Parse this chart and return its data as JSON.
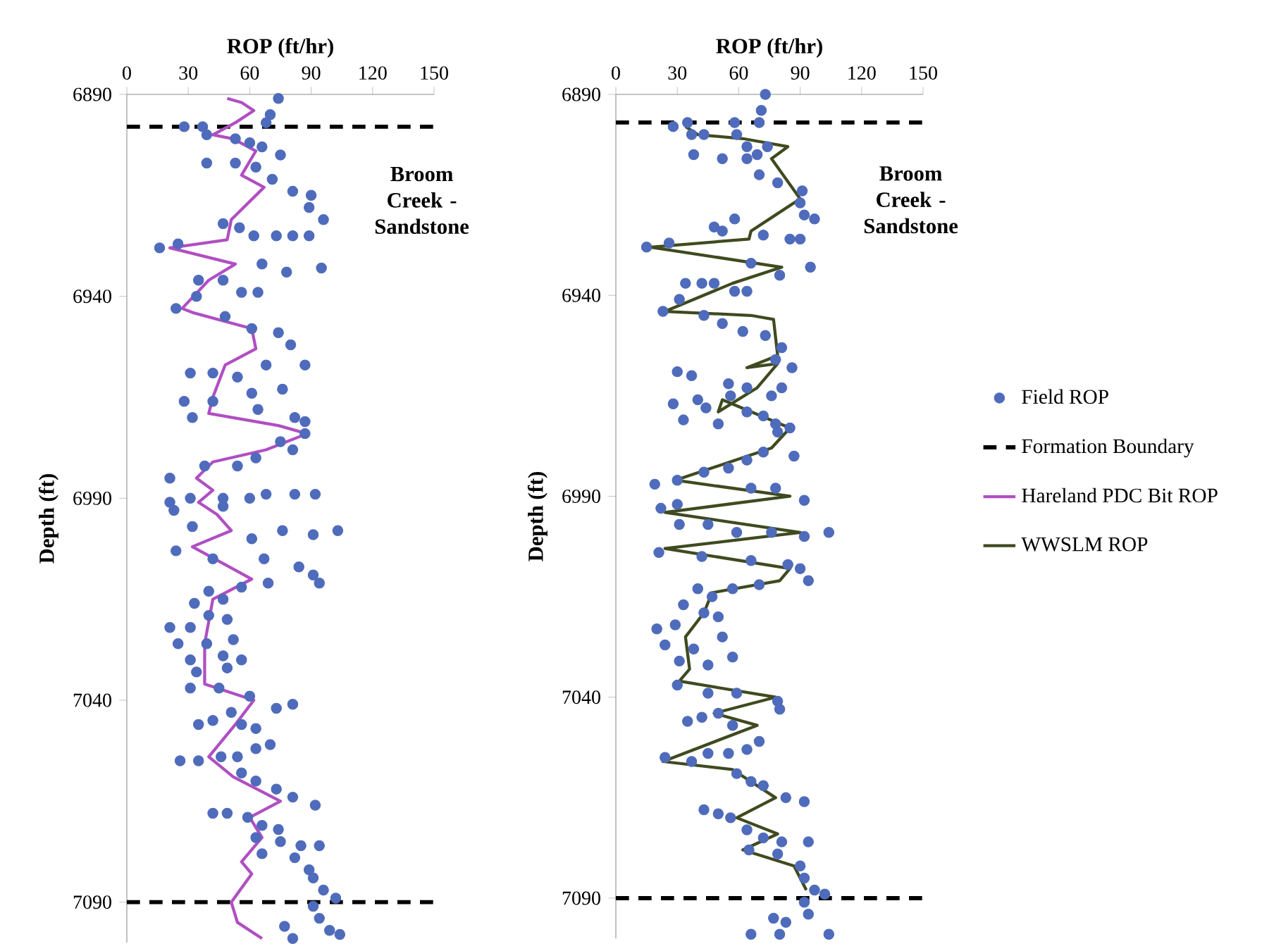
{
  "chart_data": [
    {
      "type": "scatter",
      "xlabel": "ROP (ft/hr)",
      "ylabel": "Depth (ft)",
      "xlim": [
        0,
        150
      ],
      "xticks": [
        0,
        30,
        60,
        90,
        120,
        150
      ],
      "ylim": [
        7100,
        6890
      ],
      "yticks": [
        6890,
        6940,
        6990,
        7040,
        7090
      ],
      "annotations": [
        "Broom Creek - Sandstone"
      ],
      "ref_lines": [
        {
          "axis": "y",
          "value": 6898,
          "color": "#000000",
          "line_style": "dashed"
        },
        {
          "axis": "y",
          "value": 7090,
          "color": "#000000",
          "line_style": "dashed"
        }
      ],
      "series": [
        {
          "marker": "circle",
          "color": "#4f6bbb",
          "x": [
            74,
            70,
            68,
            28,
            37,
            39,
            53,
            60,
            66,
            75,
            39,
            53,
            63,
            71,
            81,
            90,
            89,
            96,
            47,
            55,
            62,
            73,
            81,
            89,
            16,
            25,
            66,
            78,
            95,
            35,
            47,
            56,
            64,
            24,
            34,
            48,
            61,
            74,
            80,
            87,
            31,
            42,
            54,
            68,
            76,
            28,
            42,
            61,
            64,
            32,
            82,
            87,
            75,
            81,
            87,
            21,
            38,
            54,
            63,
            21,
            31,
            47,
            68,
            82,
            92,
            60,
            23,
            47,
            61,
            76,
            91,
            103,
            32,
            24,
            42,
            67,
            84,
            91,
            94,
            69,
            56,
            40,
            33,
            47,
            40,
            49,
            21,
            31,
            52,
            25,
            39,
            31,
            47,
            56,
            34,
            49,
            31,
            45,
            60,
            73,
            81,
            35,
            42,
            51,
            56,
            63,
            26,
            35,
            46,
            54,
            63,
            70,
            56,
            63,
            73,
            81,
            92,
            42,
            49,
            59,
            66,
            74,
            63,
            75,
            85,
            94,
            66,
            82,
            89,
            91,
            96,
            102,
            91,
            94,
            77,
            81,
            99,
            104
          ],
          "values": [
            6891,
            6895,
            6897,
            6898,
            6898,
            6900,
            6901,
            6902,
            6903,
            6905,
            6907,
            6907,
            6908,
            6911,
            6914,
            6915,
            6918,
            6921,
            6922,
            6923,
            6925,
            6925,
            6925,
            6925,
            6928,
            6927,
            6932,
            6934,
            6933,
            6936,
            6936,
            6939,
            6939,
            6943,
            6940,
            6945,
            6948,
            6949,
            6952,
            6957,
            6959,
            6959,
            6960,
            6957,
            6963,
            6966,
            6966,
            6964,
            6968,
            6970,
            6970,
            6974,
            6976,
            6978,
            6971,
            6985,
            6982,
            6982,
            6980,
            6991,
            6990,
            6990,
            6989,
            6989,
            6989,
            6990,
            6993,
            6992,
            7000,
            6998,
            6999,
            6998,
            6997,
            7003,
            7005,
            7005,
            7007,
            7009,
            7011,
            7011,
            7012,
            7013,
            7016,
            7015,
            7019,
            7020,
            7022,
            7022,
            7025,
            7026,
            7026,
            7030,
            7029,
            7030,
            7033,
            7032,
            7037,
            7037,
            7039,
            7042,
            7041,
            7046,
            7045,
            7043,
            7046,
            7047,
            7055,
            7055,
            7054,
            7054,
            7052,
            7051,
            7058,
            7060,
            7062,
            7064,
            7066,
            7068,
            7068,
            7069,
            7071,
            7072,
            7074,
            7075,
            7076,
            7076,
            7078,
            7079,
            7082,
            7084,
            7087,
            7089,
            7091,
            7094,
            7096,
            7099,
            7097,
            7098
          ]
        },
        {
          "type": "line",
          "name": "Hareland PDC Bit ROP",
          "color": "#b04fc2",
          "x": [
            49,
            56,
            62,
            53,
            42,
            52,
            63,
            56,
            67,
            59,
            51,
            49,
            21,
            53,
            40,
            27,
            32,
            61,
            63,
            48,
            42,
            40,
            74,
            88,
            68,
            42,
            34,
            42,
            35,
            44,
            51,
            32,
            61,
            42,
            38,
            38,
            62,
            53,
            40,
            52,
            75,
            60,
            66,
            56,
            61,
            51,
            54,
            66
          ],
          "values": [
            6891,
            6892,
            6894,
            6897,
            6900,
            6901,
            6904,
            6910,
            6913,
            6917,
            6921,
            6926,
            6928,
            6932,
            6936,
            6943,
            6944,
            6948,
            6953,
            6957,
            6965,
            6969,
            6972,
            6974,
            6978,
            6981,
            6985,
            6988,
            6991,
            6994,
            6998,
            7002,
            7010,
            7015,
            7026,
            7036,
            7040,
            7046,
            7054,
            7059,
            7065,
            7069,
            7074,
            7080,
            7083,
            7090,
            7095,
            7099
          ]
        }
      ]
    },
    {
      "type": "scatter",
      "xlabel": "ROP (ft/hr)",
      "ylabel": "Depth (ft)",
      "xlim": [
        0,
        150
      ],
      "xticks": [
        0,
        30,
        60,
        90,
        120,
        150
      ],
      "ylim": [
        7100,
        6890
      ],
      "yticks": [
        6890,
        6940,
        6990,
        7040,
        7090
      ],
      "legend": "right",
      "annotations": [
        "Broom Creek - Sandstone"
      ],
      "ref_lines": [
        {
          "axis": "y",
          "value": 6897,
          "label": "Formation Boundary",
          "color": "#000000",
          "line_style": "dashed"
        },
        {
          "axis": "y",
          "value": 7090,
          "color": "#000000",
          "line_style": "dashed"
        }
      ],
      "series": [
        {
          "name": "Field ROP",
          "marker": "circle",
          "color": "#4f6bbb",
          "x": [
            73,
            71,
            70,
            28,
            35,
            58,
            37,
            43,
            59,
            64,
            69,
            74,
            38,
            52,
            64,
            70,
            79,
            91,
            90,
            92,
            97,
            48,
            52,
            58,
            72,
            85,
            90,
            15,
            26,
            66,
            80,
            95,
            34,
            42,
            48,
            58,
            64,
            23,
            31,
            43,
            52,
            62,
            73,
            81,
            78,
            86,
            30,
            37,
            55,
            56,
            64,
            76,
            81,
            28,
            40,
            33,
            44,
            50,
            64,
            72,
            78,
            79,
            85,
            72,
            87,
            19,
            30,
            43,
            55,
            64,
            66,
            78,
            92,
            22,
            30,
            31,
            45,
            59,
            76,
            92,
            104,
            21,
            42,
            66,
            84,
            90,
            94,
            57,
            70,
            40,
            47,
            33,
            43,
            50,
            20,
            29,
            52,
            24,
            38,
            57,
            31,
            45,
            30,
            45,
            59,
            79,
            80,
            35,
            42,
            50,
            57,
            70,
            64,
            24,
            37,
            45,
            55,
            59,
            66,
            72,
            83,
            92,
            43,
            50,
            56,
            64,
            72,
            81,
            94,
            65,
            79,
            90,
            92,
            97,
            102,
            92,
            94,
            77,
            83,
            66,
            80,
            104
          ],
          "values": [
            6890,
            6894,
            6897,
            6898,
            6897,
            6897,
            6900,
            6900,
            6900,
            6903,
            6905,
            6903,
            6905,
            6906,
            6906,
            6910,
            6912,
            6914,
            6917,
            6920,
            6921,
            6923,
            6924,
            6921,
            6925,
            6926,
            6926,
            6928,
            6927,
            6932,
            6935,
            6933,
            6937,
            6937,
            6937,
            6939,
            6939,
            6944,
            6941,
            6945,
            6947,
            6949,
            6950,
            6953,
            6956,
            6958,
            6959,
            6960,
            6962,
            6965,
            6963,
            6965,
            6963,
            6967,
            6966,
            6971,
            6968,
            6972,
            6969,
            6970,
            6972,
            6974,
            6973,
            6979,
            6980,
            6987,
            6986,
            6984,
            6983,
            6981,
            6988,
            6988,
            6991,
            6993,
            6992,
            6997,
            6997,
            6999,
            6999,
            7000,
            6999,
            7004,
            7005,
            7006,
            7007,
            7008,
            7011,
            7013,
            7012,
            7013,
            7015,
            7017,
            7019,
            7020,
            7023,
            7022,
            7025,
            7027,
            7028,
            7030,
            7031,
            7032,
            7037,
            7039,
            7039,
            7041,
            7043,
            7046,
            7045,
            7044,
            7047,
            7051,
            7053,
            7055,
            7056,
            7054,
            7054,
            7059,
            7061,
            7062,
            7065,
            7066,
            7068,
            7069,
            7070,
            7073,
            7075,
            7076,
            7076,
            7078,
            7079,
            7082,
            7085,
            7088,
            7089,
            7091,
            7094,
            7095,
            7096,
            7099,
            7099,
            7099
          ]
        },
        {
          "type": "line",
          "name": "WWSLM ROP",
          "color": "#3f4a1f",
          "x": [
            34,
            40,
            62,
            84,
            76,
            90,
            78,
            66,
            65,
            17,
            81,
            57,
            24,
            66,
            77,
            79,
            64,
            79,
            69,
            50,
            52,
            85,
            76,
            29,
            85,
            24,
            90,
            24,
            85,
            80,
            47,
            43,
            34,
            36,
            31,
            78,
            48,
            69,
            23,
            57,
            78,
            59,
            79,
            62,
            87,
            93
          ],
          "values": [
            6898,
            6900,
            6901,
            6903,
            6906,
            6916,
            6920,
            6924,
            6926,
            6928,
            6933,
            6937,
            6944,
            6945,
            6946,
            6955,
            6958,
            6957,
            6963,
            6969,
            6966,
            6973,
            6978,
            6986,
            6990,
            6994,
            6999,
            7003,
            7008,
            7011,
            7014,
            7019,
            7025,
            7033,
            7036,
            7040,
            7044,
            7047,
            7056,
            7058,
            7065,
            7070,
            7074,
            7078,
            7082,
            7088
          ]
        }
      ]
    }
  ]
}
